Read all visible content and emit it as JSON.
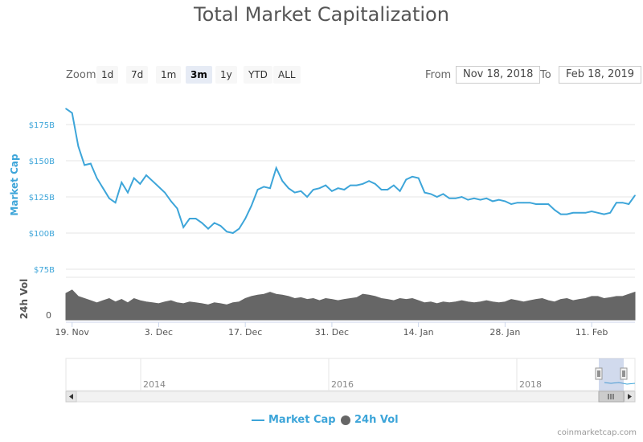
{
  "title": "Total Market Capitalization",
  "zoom": {
    "label": "Zoom",
    "buttons": [
      "1d",
      "7d",
      "1m",
      "3m",
      "1y",
      "YTD",
      "ALL"
    ],
    "active": "3m"
  },
  "range": {
    "from_label": "From",
    "from_value": "Nov 18, 2018",
    "to_label": "To",
    "to_value": "Feb 18, 2019"
  },
  "legend": {
    "market_cap": "Market Cap",
    "volume": "24h Vol"
  },
  "credits": "coinmarketcap.com",
  "colors": {
    "market_cap": "#3da5d9",
    "volume": "#666666",
    "grid": "#e6e6e6"
  },
  "chart_data": [
    {
      "type": "line",
      "ylabel": "Market Cap",
      "yticks": [
        "$75B",
        "$100B",
        "$125B",
        "$150B",
        "$175B"
      ],
      "ytick_values": [
        75,
        100,
        125,
        150,
        175
      ],
      "ylim": [
        75,
        190
      ],
      "xlim": [
        "2018-11-18",
        "2019-02-18"
      ],
      "grid": true,
      "series": [
        {
          "name": "Market Cap",
          "unit": "billion USD",
          "x": [
            "2018-11-18",
            "2018-11-19",
            "2018-11-20",
            "2018-11-21",
            "2018-11-22",
            "2018-11-23",
            "2018-11-24",
            "2018-11-25",
            "2018-11-26",
            "2018-11-27",
            "2018-11-28",
            "2018-11-29",
            "2018-11-30",
            "2018-12-01",
            "2018-12-02",
            "2018-12-03",
            "2018-12-04",
            "2018-12-05",
            "2018-12-06",
            "2018-12-07",
            "2018-12-08",
            "2018-12-09",
            "2018-12-10",
            "2018-12-11",
            "2018-12-12",
            "2018-12-13",
            "2018-12-14",
            "2018-12-15",
            "2018-12-16",
            "2018-12-17",
            "2018-12-18",
            "2018-12-19",
            "2018-12-20",
            "2018-12-21",
            "2018-12-22",
            "2018-12-23",
            "2018-12-24",
            "2018-12-25",
            "2018-12-26",
            "2018-12-27",
            "2018-12-28",
            "2018-12-29",
            "2018-12-30",
            "2018-12-31",
            "2019-01-01",
            "2019-01-02",
            "2019-01-03",
            "2019-01-04",
            "2019-01-05",
            "2019-01-06",
            "2019-01-07",
            "2019-01-08",
            "2019-01-09",
            "2019-01-10",
            "2019-01-11",
            "2019-01-12",
            "2019-01-13",
            "2019-01-14",
            "2019-01-15",
            "2019-01-16",
            "2019-01-17",
            "2019-01-18",
            "2019-01-19",
            "2019-01-20",
            "2019-01-21",
            "2019-01-22",
            "2019-01-23",
            "2019-01-24",
            "2019-01-25",
            "2019-01-26",
            "2019-01-27",
            "2019-01-28",
            "2019-01-29",
            "2019-01-30",
            "2019-01-31",
            "2019-02-01",
            "2019-02-02",
            "2019-02-03",
            "2019-02-04",
            "2019-02-05",
            "2019-02-06",
            "2019-02-07",
            "2019-02-08",
            "2019-02-09",
            "2019-02-10",
            "2019-02-11",
            "2019-02-12",
            "2019-02-13",
            "2019-02-14",
            "2019-02-15",
            "2019-02-16",
            "2019-02-17",
            "2019-02-18"
          ],
          "values": [
            186,
            183,
            160,
            147,
            148,
            138,
            131,
            124,
            121,
            135,
            128,
            138,
            134,
            140,
            136,
            132,
            128,
            122,
            117,
            104,
            110,
            110,
            107,
            103,
            107,
            105,
            101,
            100,
            103,
            110,
            119,
            130,
            132,
            131,
            145,
            136,
            131,
            128,
            129,
            125,
            130,
            131,
            133,
            129,
            131,
            130,
            133,
            133,
            134,
            136,
            134,
            130,
            130,
            133,
            129,
            137,
            139,
            138,
            128,
            127,
            125,
            127,
            124,
            124,
            125,
            123,
            124,
            123,
            124,
            122,
            123,
            122,
            120,
            121,
            121,
            121,
            120,
            120,
            120,
            116,
            113,
            113,
            114,
            114,
            114,
            115,
            114,
            113,
            114,
            121,
            121,
            120,
            126
          ]
        }
      ]
    },
    {
      "type": "area",
      "ylabel": "24h Vol",
      "yticks": [
        "0"
      ],
      "series": [
        {
          "name": "24h Vol",
          "values": [
            0.62,
            0.7,
            0.55,
            0.5,
            0.45,
            0.4,
            0.45,
            0.5,
            0.42,
            0.48,
            0.4,
            0.5,
            0.45,
            0.42,
            0.4,
            0.38,
            0.42,
            0.45,
            0.4,
            0.38,
            0.42,
            0.4,
            0.38,
            0.35,
            0.4,
            0.38,
            0.35,
            0.4,
            0.42,
            0.5,
            0.55,
            0.58,
            0.6,
            0.65,
            0.6,
            0.58,
            0.55,
            0.5,
            0.52,
            0.48,
            0.5,
            0.45,
            0.5,
            0.48,
            0.45,
            0.48,
            0.5,
            0.52,
            0.6,
            0.58,
            0.55,
            0.5,
            0.48,
            0.45,
            0.5,
            0.48,
            0.5,
            0.45,
            0.4,
            0.42,
            0.38,
            0.42,
            0.4,
            0.42,
            0.45,
            0.42,
            0.4,
            0.42,
            0.45,
            0.42,
            0.4,
            0.42,
            0.48,
            0.45,
            0.42,
            0.45,
            0.48,
            0.5,
            0.45,
            0.42,
            0.48,
            0.5,
            0.45,
            0.48,
            0.5,
            0.55,
            0.55,
            0.5,
            0.52,
            0.55,
            0.55,
            0.6,
            0.65
          ]
        }
      ]
    }
  ],
  "x_axis_labels": [
    "19. Nov",
    "3. Dec",
    "17. Dec",
    "31. Dec",
    "14. Jan",
    "28. Jan",
    "11. Feb"
  ],
  "navigator": {
    "year_labels": [
      "2014",
      "2016",
      "2018"
    ]
  }
}
